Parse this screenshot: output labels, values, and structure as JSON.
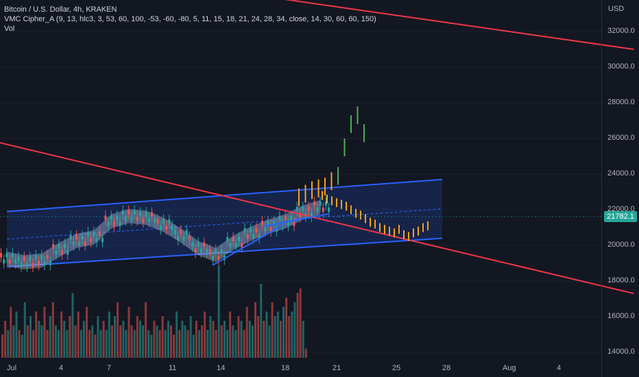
{
  "legend": {
    "symbol_line": "Bitcoin / U.S. Dollar, 4h, KRAKEN",
    "indicator_line": "VMC Cipher_A (9, 13, hlc3, 3, 53, 60, 100, -53, -60, -80, 5, 11, 15, 18, 21, 24, 28, 34, close, 14, 30, 60, 60, 150)",
    "volume_line": "Vol"
  },
  "currency": "USD",
  "last_price": "21782.1",
  "colors": {
    "background": "#131722",
    "up": "#26a69a",
    "down": "#ef5350",
    "trendline": "#f23645",
    "channel": "#2962ff",
    "projection_up": "#4caf50",
    "projection_down": "#f7a21b"
  },
  "chart_data": {
    "type": "candlestick",
    "title": "Bitcoin / U.S. Dollar, 4h, KRAKEN",
    "ylabel": "USD",
    "ylim": [
      13700,
      34500
    ],
    "y_ticks": [
      "14000.0",
      "16000.0",
      "18000.0",
      "20000.0",
      "22000.0",
      "24000.0",
      "26000.0",
      "28000.0",
      "30000.0",
      "32000.0"
    ],
    "x_ticks": [
      "Jul",
      "4",
      "7",
      "11",
      "14",
      "18",
      "21",
      "25",
      "28",
      "Aug",
      "4"
    ],
    "price_path": [
      {
        "x": "Jul 1",
        "y": 19300
      },
      {
        "x": "Jul 2",
        "y": 19100
      },
      {
        "x": "Jul 3",
        "y": 19200
      },
      {
        "x": "Jul 4",
        "y": 19800
      },
      {
        "x": "Jul 5",
        "y": 20300
      },
      {
        "x": "Jul 6",
        "y": 20500
      },
      {
        "x": "Jul 7",
        "y": 21400
      },
      {
        "x": "Jul 8",
        "y": 21700
      },
      {
        "x": "Jul 9",
        "y": 21600
      },
      {
        "x": "Jul 10",
        "y": 21200
      },
      {
        "x": "Jul 11",
        "y": 20600
      },
      {
        "x": "Jul 12",
        "y": 19900
      },
      {
        "x": "Jul 13",
        "y": 19500
      },
      {
        "x": "Jul 14",
        "y": 20200
      },
      {
        "x": "Jul 15",
        "y": 20700
      },
      {
        "x": "Jul 16",
        "y": 21100
      },
      {
        "x": "Jul 17",
        "y": 21400
      },
      {
        "x": "Jul 18",
        "y": 21900
      },
      {
        "x": "Jul 19",
        "y": 22200
      }
    ],
    "projection_up": [
      22700,
      22900,
      23100,
      23200,
      23300,
      23600,
      23900,
      25500,
      26800,
      27300,
      26300
    ],
    "projection_down": [
      22800,
      22600,
      22500,
      22400,
      22300,
      22200,
      22000,
      21800,
      21700,
      21500,
      21300,
      21200,
      21000,
      20900,
      20800,
      20700,
      20900,
      20600,
      20500,
      20700,
      20800,
      21000,
      21100
    ],
    "channel": {
      "lower_start": [
        "Jul 1",
        18800
      ],
      "lower_end": [
        "Jul 26",
        20400
      ],
      "upper_start": [
        "Jul 1",
        21900
      ],
      "upper_end": [
        "Jul 26",
        23700
      ]
    },
    "trendlines": [
      {
        "name": "falling-trendline-lower",
        "from": [
          "Jun 30",
          25900
        ],
        "to": [
          "Aug 6",
          17300
        ]
      },
      {
        "name": "falling-trendline-upper",
        "from": [
          "Jul 12",
          34500
        ],
        "to": [
          "Aug 6",
          31000
        ]
      }
    ],
    "volume": {
      "relative_heights": [
        0.25,
        0.4,
        0.3,
        0.55,
        0.35,
        0.5,
        0.3,
        0.25,
        0.6,
        0.35,
        0.45,
        0.3,
        0.5,
        0.4,
        0.35,
        0.55,
        0.3,
        0.45,
        0.6,
        0.35,
        0.3,
        0.5,
        0.4,
        0.3,
        0.45,
        0.7,
        0.35,
        0.5,
        0.3,
        0.4,
        0.55,
        0.3,
        0.35,
        0.25,
        0.45,
        0.3,
        0.4,
        0.3,
        0.5,
        0.35,
        0.45,
        0.6,
        0.35,
        0.4,
        0.3,
        0.55,
        0.35,
        0.3,
        0.45,
        0.4,
        0.35,
        0.6,
        0.3,
        0.25,
        0.4,
        0.35,
        0.3,
        0.45,
        0.3,
        0.4,
        0.35,
        0.25,
        0.5,
        0.3,
        0.4,
        0.35,
        0.3,
        0.45,
        0.25,
        0.4,
        0.3,
        0.35,
        0.5,
        0.3,
        0.45,
        0.4,
        0.3,
        1.0,
        0.35,
        0.4,
        0.3,
        0.5,
        0.35,
        0.3,
        0.45,
        0.4,
        0.3,
        0.55,
        0.4,
        0.35,
        0.6,
        0.45,
        0.8,
        0.4,
        0.5,
        0.35,
        0.6,
        0.45,
        0.5,
        0.4,
        0.55,
        0.65,
        0.45,
        0.5,
        0.6,
        0.7,
        0.75,
        0.4,
        0.1
      ]
    }
  }
}
